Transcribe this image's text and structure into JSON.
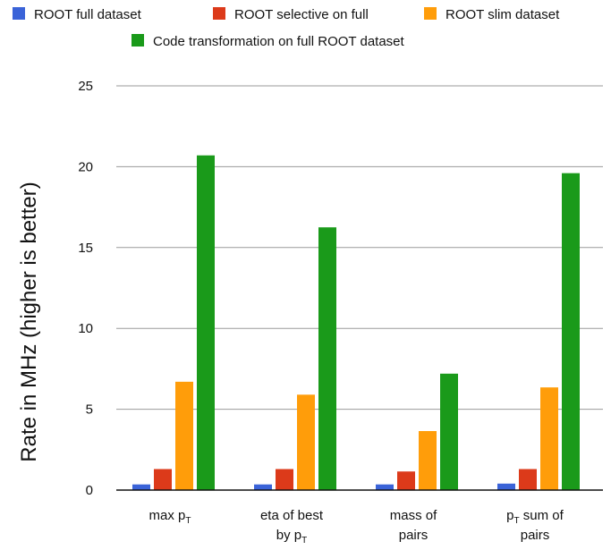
{
  "chart_data": {
    "type": "bar",
    "title": "",
    "xlabel": "",
    "ylabel": "Rate in MHz (higher is better)",
    "ylim": [
      0,
      25
    ],
    "yticks": [
      0,
      5,
      10,
      15,
      20,
      25
    ],
    "grid": true,
    "legend_position": "top",
    "categories": [
      {
        "lines": [
          [
            {
              "t": "max p"
            },
            {
              "t": "T",
              "sub": true
            }
          ]
        ]
      },
      {
        "lines": [
          [
            {
              "t": "eta of best"
            }
          ],
          [
            {
              "t": "by p"
            },
            {
              "t": "T",
              "sub": true
            }
          ]
        ]
      },
      {
        "lines": [
          [
            {
              "t": "mass of"
            }
          ],
          [
            {
              "t": "pairs"
            }
          ]
        ]
      },
      {
        "lines": [
          [
            {
              "t": "p"
            },
            {
              "t": "T",
              "sub": true
            },
            {
              "t": " sum of"
            }
          ],
          [
            {
              "t": "pairs"
            }
          ]
        ]
      }
    ],
    "series": [
      {
        "name": "ROOT full dataset",
        "color": "#3A63D8",
        "values": [
          0.35,
          0.35,
          0.35,
          0.4
        ]
      },
      {
        "name": "ROOT selective on full",
        "color": "#DC3A1A",
        "values": [
          1.3,
          1.3,
          1.15,
          1.3
        ]
      },
      {
        "name": "ROOT slim dataset",
        "color": "#FF9D0A",
        "values": [
          6.7,
          5.9,
          3.65,
          6.35
        ]
      },
      {
        "name": "Code transformation on full ROOT dataset",
        "color": "#1A9A1A",
        "values": [
          20.7,
          16.25,
          7.2,
          19.6
        ]
      }
    ]
  }
}
